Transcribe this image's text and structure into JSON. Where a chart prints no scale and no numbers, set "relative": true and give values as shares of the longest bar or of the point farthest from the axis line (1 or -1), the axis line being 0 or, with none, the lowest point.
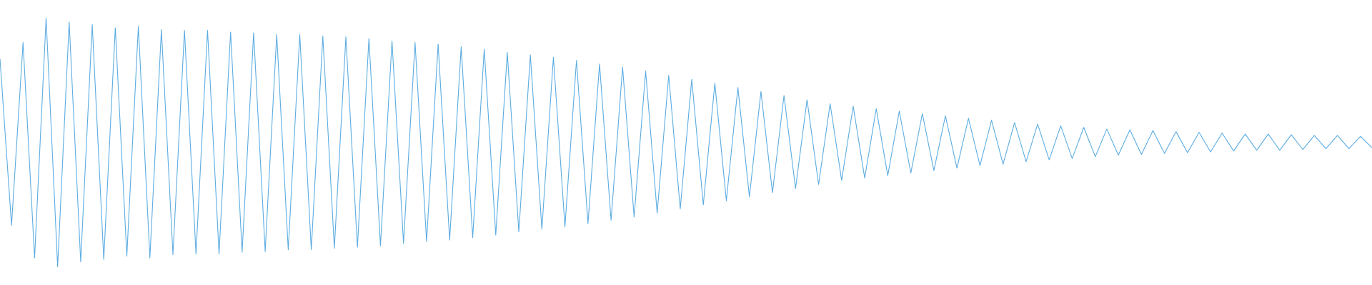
{
  "chart_data": {
    "type": "line",
    "relative": true,
    "categories": [
      null,
      null,
      null,
      null,
      null,
      null,
      null,
      null,
      null,
      null,
      null,
      null,
      null,
      null,
      null,
      null,
      null,
      null,
      null,
      null,
      null,
      null,
      null,
      null,
      null,
      null,
      null,
      null,
      null,
      null,
      null,
      null,
      null,
      null,
      null,
      null,
      null,
      null,
      null,
      null,
      null,
      null,
      null,
      null,
      null,
      null,
      null,
      null,
      null,
      null,
      null,
      null,
      null,
      null,
      null,
      null,
      null,
      null,
      null,
      null,
      null,
      null,
      null,
      null,
      null,
      null,
      null,
      null,
      null,
      null,
      null,
      null,
      null,
      null,
      null,
      null,
      null,
      null,
      null,
      null,
      null,
      null,
      null,
      null,
      null,
      null,
      null,
      null,
      null,
      null,
      null,
      null,
      null,
      null,
      null,
      null,
      null,
      null,
      null,
      null,
      null,
      null,
      null,
      null,
      null,
      null,
      null,
      null,
      null,
      null,
      null,
      null,
      null,
      null,
      null,
      null,
      null,
      null,
      null,
      null
    ],
    "series": [
      {
        "color": "#5dade2",
        "values": [
          0.836,
          0.167,
          0.902,
          0.036,
          1.0,
          0.0,
          0.984,
          0.02,
          0.974,
          0.03,
          0.961,
          0.043,
          0.967,
          0.036,
          0.954,
          0.049,
          0.951,
          0.052,
          0.951,
          0.052,
          0.944,
          0.059,
          0.941,
          0.062,
          0.934,
          0.069,
          0.934,
          0.069,
          0.928,
          0.075,
          0.925,
          0.079,
          0.918,
          0.085,
          0.908,
          0.095,
          0.902,
          0.102,
          0.895,
          0.108,
          0.885,
          0.118,
          0.875,
          0.128,
          0.862,
          0.141,
          0.852,
          0.151,
          0.843,
          0.161,
          0.83,
          0.174,
          0.816,
          0.187,
          0.803,
          0.2,
          0.787,
          0.216,
          0.77,
          0.233,
          0.754,
          0.249,
          0.738,
          0.266,
          0.721,
          0.282,
          0.705,
          0.298,
          0.689,
          0.315,
          0.672,
          0.331,
          0.656,
          0.348,
          0.646,
          0.357,
          0.636,
          0.367,
          0.626,
          0.377,
          0.616,
          0.387,
          0.607,
          0.397,
          0.597,
          0.407,
          0.59,
          0.413,
          0.58,
          0.423,
          0.574,
          0.43,
          0.567,
          0.436,
          0.561,
          0.443,
          0.554,
          0.449,
          0.551,
          0.452,
          0.548,
          0.456,
          0.544,
          0.459,
          0.541,
          0.462,
          0.538,
          0.466,
          0.534,
          0.469,
          0.534,
          0.469,
          0.531,
          0.472,
          0.528,
          0.475,
          0.528,
          0.475,
          0.525,
          0.479
        ]
      }
    ]
  }
}
